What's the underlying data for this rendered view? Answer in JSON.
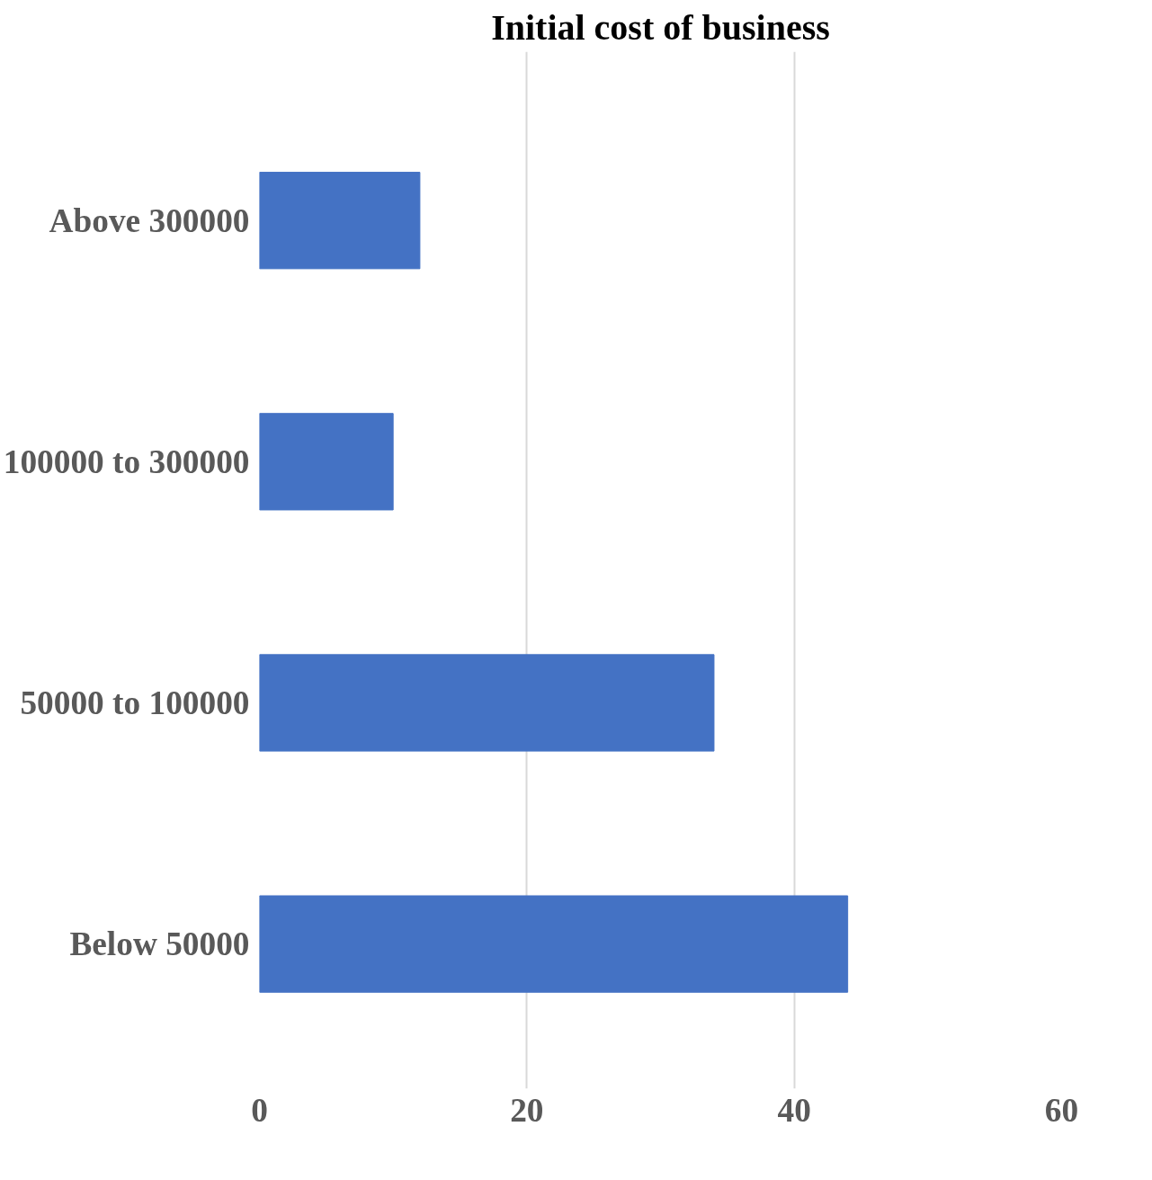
{
  "chart_data": {
    "type": "bar",
    "orientation": "horizontal",
    "title": "Initial cost of business",
    "categories": [
      "Above 300000",
      "100000 to 300000",
      "50000 to 100000",
      "Below 50000"
    ],
    "values": [
      12,
      10,
      34,
      44
    ],
    "color": "#4472c4",
    "xlim": [
      0,
      60
    ],
    "xticks": [
      0,
      20,
      40,
      60
    ],
    "grid": "x"
  }
}
